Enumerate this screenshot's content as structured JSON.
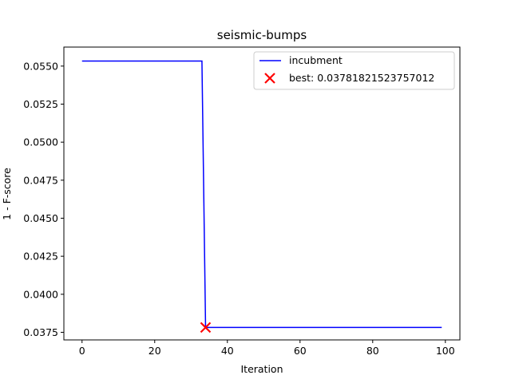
{
  "chart_data": {
    "type": "line",
    "title": "seismic-bumps",
    "xlabel": "Iteration",
    "ylabel": "1 - F-score",
    "xlim": [
      -5,
      104
    ],
    "ylim": [
      0.037,
      0.05625
    ],
    "xticks": [
      0,
      20,
      40,
      60,
      80,
      100
    ],
    "xtick_labels": [
      "0",
      "20",
      "40",
      "60",
      "80",
      "100"
    ],
    "yticks": [
      0.0375,
      0.04,
      0.0425,
      0.045,
      0.0475,
      0.05,
      0.0525,
      0.055
    ],
    "ytick_labels": [
      "0.0375",
      "0.0400",
      "0.0425",
      "0.0450",
      "0.0475",
      "0.0500",
      "0.0525",
      "0.0550"
    ],
    "grid": false,
    "legend_position": "top-right",
    "series": [
      {
        "name": "incubment",
        "color": "#0000ff",
        "style": "step",
        "x": [
          0,
          33,
          34,
          99
        ],
        "y": [
          0.05533,
          0.05533,
          0.037818,
          0.037818
        ]
      }
    ],
    "markers": [
      {
        "label": "best: 0.03781821523757012",
        "x": 34,
        "y": 0.037818,
        "color": "#ff0000",
        "marker": "x"
      }
    ]
  }
}
